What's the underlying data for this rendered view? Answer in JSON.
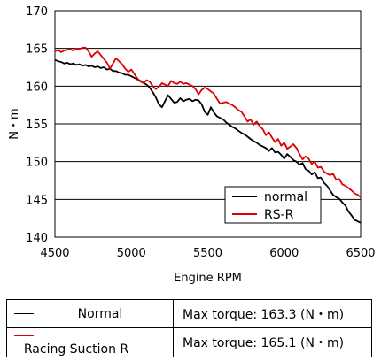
{
  "chart_data": {
    "type": "line",
    "xlabel": "Engine RPM",
    "ylabel": "N・m",
    "xlim": [
      4500,
      6500
    ],
    "ylim": [
      140,
      170
    ],
    "xticks": [
      "4500",
      "5000",
      "5500",
      "6000",
      "6500"
    ],
    "yticks": [
      "140",
      "145",
      "150",
      "155",
      "160",
      "165",
      "170"
    ],
    "grid": "horizontal",
    "legend_position": "bottom-right",
    "series": [
      {
        "name": "normal",
        "color": "#000000",
        "points": [
          [
            4500,
            163.5
          ],
          [
            4520,
            163.3
          ],
          [
            4540,
            163.2
          ],
          [
            4560,
            163.0
          ],
          [
            4580,
            163.1
          ],
          [
            4600,
            162.9
          ],
          [
            4620,
            163.0
          ],
          [
            4640,
            162.8
          ],
          [
            4660,
            162.9
          ],
          [
            4680,
            162.7
          ],
          [
            4700,
            162.8
          ],
          [
            4720,
            162.6
          ],
          [
            4740,
            162.7
          ],
          [
            4760,
            162.5
          ],
          [
            4780,
            162.6
          ],
          [
            4800,
            162.4
          ],
          [
            4820,
            162.5
          ],
          [
            4840,
            162.2
          ],
          [
            4860,
            162.3
          ],
          [
            4880,
            162.0
          ],
          [
            4900,
            162.0
          ],
          [
            4920,
            161.8
          ],
          [
            4940,
            161.7
          ],
          [
            4960,
            161.5
          ],
          [
            4980,
            161.5
          ],
          [
            5000,
            161.3
          ],
          [
            5020,
            161.1
          ],
          [
            5040,
            160.9
          ],
          [
            5060,
            160.7
          ],
          [
            5080,
            160.4
          ],
          [
            5100,
            160.2
          ],
          [
            5120,
            159.8
          ],
          [
            5140,
            159.2
          ],
          [
            5160,
            158.5
          ],
          [
            5180,
            157.6
          ],
          [
            5200,
            157.2
          ],
          [
            5220,
            158.0
          ],
          [
            5240,
            158.8
          ],
          [
            5260,
            158.3
          ],
          [
            5280,
            157.8
          ],
          [
            5300,
            157.9
          ],
          [
            5320,
            158.4
          ],
          [
            5340,
            158.0
          ],
          [
            5360,
            158.2
          ],
          [
            5380,
            158.3
          ],
          [
            5400,
            158.0
          ],
          [
            5420,
            158.2
          ],
          [
            5440,
            158.1
          ],
          [
            5460,
            157.6
          ],
          [
            5480,
            156.6
          ],
          [
            5500,
            156.2
          ],
          [
            5520,
            157.2
          ],
          [
            5540,
            156.5
          ],
          [
            5560,
            156.0
          ],
          [
            5580,
            155.8
          ],
          [
            5600,
            155.6
          ],
          [
            5620,
            155.2
          ],
          [
            5640,
            154.9
          ],
          [
            5660,
            154.6
          ],
          [
            5680,
            154.4
          ],
          [
            5700,
            154.1
          ],
          [
            5720,
            153.8
          ],
          [
            5740,
            153.6
          ],
          [
            5760,
            153.3
          ],
          [
            5780,
            153.0
          ],
          [
            5800,
            152.7
          ],
          [
            5820,
            152.5
          ],
          [
            5840,
            152.2
          ],
          [
            5860,
            152.0
          ],
          [
            5880,
            151.8
          ],
          [
            5900,
            151.4
          ],
          [
            5920,
            151.8
          ],
          [
            5940,
            151.2
          ],
          [
            5960,
            151.3
          ],
          [
            5980,
            150.9
          ],
          [
            6000,
            150.4
          ],
          [
            6020,
            151.0
          ],
          [
            6040,
            150.6
          ],
          [
            6060,
            150.2
          ],
          [
            6080,
            150.0
          ],
          [
            6100,
            149.6
          ],
          [
            6120,
            149.8
          ],
          [
            6140,
            149.0
          ],
          [
            6160,
            148.8
          ],
          [
            6180,
            148.3
          ],
          [
            6200,
            148.6
          ],
          [
            6220,
            147.8
          ],
          [
            6240,
            147.9
          ],
          [
            6260,
            147.2
          ],
          [
            6280,
            146.8
          ],
          [
            6300,
            146.2
          ],
          [
            6320,
            145.6
          ],
          [
            6340,
            145.3
          ],
          [
            6360,
            145.1
          ],
          [
            6380,
            144.6
          ],
          [
            6400,
            144.2
          ],
          [
            6420,
            143.4
          ],
          [
            6440,
            142.9
          ],
          [
            6460,
            142.3
          ],
          [
            6480,
            142.1
          ],
          [
            6500,
            141.9
          ]
        ]
      },
      {
        "name": "RS-R",
        "color": "#e00000",
        "points": [
          [
            4500,
            164.6
          ],
          [
            4520,
            164.8
          ],
          [
            4540,
            164.5
          ],
          [
            4560,
            164.7
          ],
          [
            4580,
            164.8
          ],
          [
            4600,
            164.9
          ],
          [
            4620,
            164.7
          ],
          [
            4640,
            165.0
          ],
          [
            4660,
            164.9
          ],
          [
            4680,
            165.1
          ],
          [
            4700,
            165.1
          ],
          [
            4720,
            164.6
          ],
          [
            4740,
            163.9
          ],
          [
            4760,
            164.3
          ],
          [
            4780,
            164.6
          ],
          [
            4800,
            164.1
          ],
          [
            4820,
            163.6
          ],
          [
            4840,
            163.1
          ],
          [
            4860,
            162.3
          ],
          [
            4880,
            163.0
          ],
          [
            4900,
            163.7
          ],
          [
            4920,
            163.3
          ],
          [
            4940,
            162.9
          ],
          [
            4960,
            162.3
          ],
          [
            4980,
            161.9
          ],
          [
            5000,
            162.2
          ],
          [
            5020,
            161.6
          ],
          [
            5040,
            161.0
          ],
          [
            5060,
            160.6
          ],
          [
            5080,
            160.4
          ],
          [
            5100,
            160.8
          ],
          [
            5120,
            160.6
          ],
          [
            5140,
            160.0
          ],
          [
            5160,
            159.6
          ],
          [
            5180,
            159.9
          ],
          [
            5200,
            160.4
          ],
          [
            5220,
            160.2
          ],
          [
            5240,
            160.0
          ],
          [
            5260,
            160.7
          ],
          [
            5280,
            160.4
          ],
          [
            5300,
            160.3
          ],
          [
            5320,
            160.6
          ],
          [
            5340,
            160.3
          ],
          [
            5360,
            160.4
          ],
          [
            5380,
            160.2
          ],
          [
            5400,
            160.0
          ],
          [
            5420,
            159.6
          ],
          [
            5440,
            158.9
          ],
          [
            5460,
            159.5
          ],
          [
            5480,
            159.8
          ],
          [
            5500,
            159.6
          ],
          [
            5520,
            159.3
          ],
          [
            5540,
            159.0
          ],
          [
            5560,
            158.3
          ],
          [
            5580,
            157.7
          ],
          [
            5600,
            157.8
          ],
          [
            5620,
            157.9
          ],
          [
            5640,
            157.7
          ],
          [
            5660,
            157.5
          ],
          [
            5680,
            157.2
          ],
          [
            5700,
            156.8
          ],
          [
            5720,
            156.6
          ],
          [
            5740,
            156.0
          ],
          [
            5760,
            155.3
          ],
          [
            5780,
            155.6
          ],
          [
            5800,
            154.9
          ],
          [
            5820,
            155.3
          ],
          [
            5840,
            154.7
          ],
          [
            5860,
            154.3
          ],
          [
            5880,
            153.5
          ],
          [
            5900,
            153.9
          ],
          [
            5920,
            153.2
          ],
          [
            5940,
            152.6
          ],
          [
            5960,
            153.0
          ],
          [
            5980,
            152.1
          ],
          [
            6000,
            152.5
          ],
          [
            6020,
            151.7
          ],
          [
            6040,
            152.0
          ],
          [
            6060,
            152.3
          ],
          [
            6080,
            151.8
          ],
          [
            6100,
            151.0
          ],
          [
            6120,
            150.3
          ],
          [
            6140,
            150.7
          ],
          [
            6160,
            150.4
          ],
          [
            6180,
            149.7
          ],
          [
            6200,
            150.0
          ],
          [
            6220,
            149.2
          ],
          [
            6240,
            149.3
          ],
          [
            6260,
            148.7
          ],
          [
            6280,
            148.4
          ],
          [
            6300,
            148.2
          ],
          [
            6320,
            148.4
          ],
          [
            6340,
            147.6
          ],
          [
            6360,
            147.7
          ],
          [
            6380,
            147.0
          ],
          [
            6400,
            146.8
          ],
          [
            6420,
            146.5
          ],
          [
            6440,
            146.2
          ],
          [
            6460,
            145.8
          ],
          [
            6480,
            145.6
          ],
          [
            6500,
            145.3
          ]
        ]
      }
    ]
  },
  "table": {
    "rows": [
      {
        "swatch_color": "#000000",
        "name": "Normal",
        "value": "Max torque: 163.3 (N・m)"
      },
      {
        "swatch_color": "#e00000",
        "name": "Racing Suction R",
        "value": "Max torque: 165.1 (N・m)"
      }
    ]
  }
}
